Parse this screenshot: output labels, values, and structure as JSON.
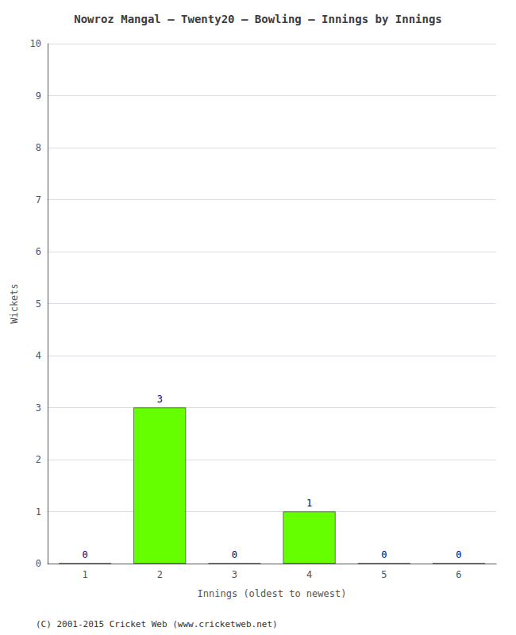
{
  "chart_data": {
    "type": "bar",
    "title": "Nowroz Mangal – Twenty20 – Bowling – Innings by Innings",
    "xlabel": "Innings (oldest to newest)",
    "ylabel": "Wickets",
    "categories": [
      1,
      2,
      3,
      4,
      5,
      6
    ],
    "values": [
      0,
      3,
      0,
      1,
      0,
      0
    ],
    "color": "#66ff00",
    "ylim": [
      0,
      10
    ],
    "yticks": [
      0,
      1,
      2,
      3,
      4,
      5,
      6,
      7,
      8,
      9,
      10
    ],
    "grid": true,
    "data_labels": true,
    "annotations": [
      "(C) 2001-2015 Cricket Web (www.cricketweb.net)"
    ]
  }
}
